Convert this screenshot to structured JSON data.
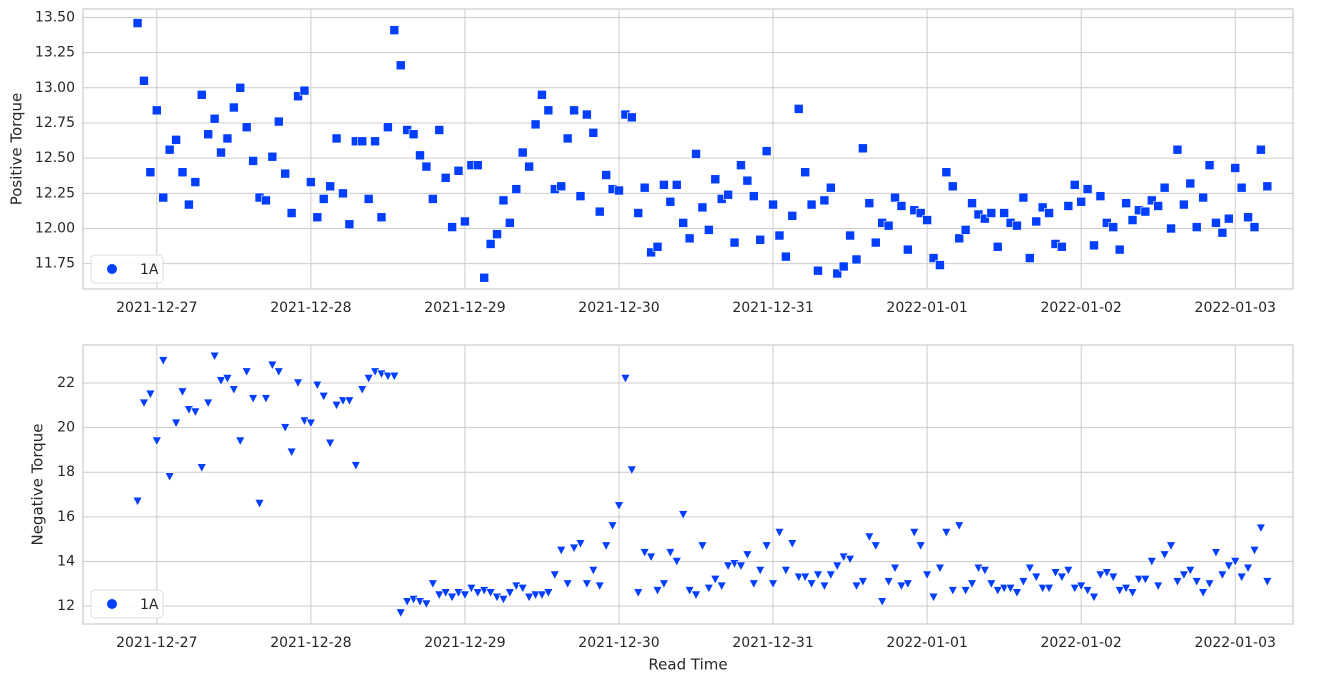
{
  "chart_data": [
    {
      "type": "scatter",
      "y_label": "Positive Torque",
      "marker": "square",
      "grid": true,
      "legend": "lower left",
      "xlim": [
        "2021-12-26 12:30",
        "2022-01-03 09:00"
      ],
      "xticks": [
        "2021-12-27",
        "2021-12-28",
        "2021-12-29",
        "2021-12-30",
        "2021-12-31",
        "2022-01-01",
        "2022-01-02",
        "2022-01-03"
      ],
      "ylim": [
        11.57,
        13.56
      ],
      "yticks": [
        11.75,
        {
          "value": 12,
          "label": "12.00"
        },
        12.25,
        {
          "value": 12.5,
          "label": "12.50"
        },
        12.75,
        {
          "value": 13,
          "label": "13.00"
        },
        13.25,
        {
          "value": 13.5,
          "label": "13.50"
        }
      ],
      "x": [
        "2021-12-26 21:00",
        "2021-12-26 22:00",
        "2021-12-26 23:00",
        "2021-12-27 00:00",
        "2021-12-27 01:00",
        "2021-12-27 02:00",
        "2021-12-27 03:00",
        "2021-12-27 04:00",
        "2021-12-27 05:00",
        "2021-12-27 06:00",
        "2021-12-27 07:00",
        "2021-12-27 08:00",
        "2021-12-27 09:00",
        "2021-12-27 10:00",
        "2021-12-27 11:00",
        "2021-12-27 12:00",
        "2021-12-27 13:00",
        "2021-12-27 14:00",
        "2021-12-27 15:00",
        "2021-12-27 16:00",
        "2021-12-27 17:00",
        "2021-12-27 18:00",
        "2021-12-27 19:00",
        "2021-12-27 20:00",
        "2021-12-27 21:00",
        "2021-12-27 22:00",
        "2021-12-27 23:00",
        "2021-12-28 00:00",
        "2021-12-28 01:00",
        "2021-12-28 02:00",
        "2021-12-28 03:00",
        "2021-12-28 04:00",
        "2021-12-28 05:00",
        "2021-12-28 06:00",
        "2021-12-28 07:00",
        "2021-12-28 08:00",
        "2021-12-28 09:00",
        "2021-12-28 10:00",
        "2021-12-28 11:00",
        "2021-12-28 12:00",
        "2021-12-28 13:00",
        "2021-12-28 14:00",
        "2021-12-28 15:00",
        "2021-12-28 16:00",
        "2021-12-28 17:00",
        "2021-12-28 18:00",
        "2021-12-28 19:00",
        "2021-12-28 20:00",
        "2021-12-28 21:00",
        "2021-12-28 22:00",
        "2021-12-28 23:00",
        "2021-12-29 00:00",
        "2021-12-29 01:00",
        "2021-12-29 02:00",
        "2021-12-29 03:00",
        "2021-12-29 04:00",
        "2021-12-29 05:00",
        "2021-12-29 06:00",
        "2021-12-29 07:00",
        "2021-12-29 08:00",
        "2021-12-29 09:00",
        "2021-12-29 10:00",
        "2021-12-29 11:00",
        "2021-12-29 12:00",
        "2021-12-29 13:00",
        "2021-12-29 14:00",
        "2021-12-29 15:00",
        "2021-12-29 16:00",
        "2021-12-29 17:00",
        "2021-12-29 18:00",
        "2021-12-29 19:00",
        "2021-12-29 20:00",
        "2021-12-29 21:00",
        "2021-12-29 22:00",
        "2021-12-29 23:00",
        "2021-12-30 00:00",
        "2021-12-30 01:00",
        "2021-12-30 02:00",
        "2021-12-30 03:00",
        "2021-12-30 04:00",
        "2021-12-30 05:00",
        "2021-12-30 06:00",
        "2021-12-30 07:00",
        "2021-12-30 08:00",
        "2021-12-30 09:00",
        "2021-12-30 10:00",
        "2021-12-30 11:00",
        "2021-12-30 12:00",
        "2021-12-30 13:00",
        "2021-12-30 14:00",
        "2021-12-30 15:00",
        "2021-12-30 16:00",
        "2021-12-30 17:00",
        "2021-12-30 18:00",
        "2021-12-30 19:00",
        "2021-12-30 20:00",
        "2021-12-30 21:00",
        "2021-12-30 22:00",
        "2021-12-30 23:00",
        "2021-12-31 00:00",
        "2021-12-31 01:00",
        "2021-12-31 02:00",
        "2021-12-31 03:00",
        "2021-12-31 04:00",
        "2021-12-31 05:00",
        "2021-12-31 06:00",
        "2021-12-31 07:00",
        "2021-12-31 08:00",
        "2021-12-31 09:00",
        "2021-12-31 10:00",
        "2021-12-31 11:00",
        "2021-12-31 12:00",
        "2021-12-31 13:00",
        "2021-12-31 14:00",
        "2021-12-31 15:00",
        "2021-12-31 16:00",
        "2021-12-31 17:00",
        "2021-12-31 18:00",
        "2021-12-31 19:00",
        "2021-12-31 20:00",
        "2021-12-31 21:00",
        "2021-12-31 22:00",
        "2021-12-31 23:00",
        "2022-01-01 00:00",
        "2022-01-01 01:00",
        "2022-01-01 02:00",
        "2022-01-01 03:00",
        "2022-01-01 04:00",
        "2022-01-01 05:00",
        "2022-01-01 06:00",
        "2022-01-01 07:00",
        "2022-01-01 08:00",
        "2022-01-01 09:00",
        "2022-01-01 10:00",
        "2022-01-01 11:00",
        "2022-01-01 12:00",
        "2022-01-01 13:00",
        "2022-01-01 14:00",
        "2022-01-01 15:00",
        "2022-01-01 16:00",
        "2022-01-01 17:00",
        "2022-01-01 18:00",
        "2022-01-01 19:00",
        "2022-01-01 20:00",
        "2022-01-01 21:00",
        "2022-01-01 22:00",
        "2022-01-01 23:00",
        "2022-01-02 00:00",
        "2022-01-02 01:00",
        "2022-01-02 02:00",
        "2022-01-02 03:00",
        "2022-01-02 04:00",
        "2022-01-02 05:00",
        "2022-01-02 06:00",
        "2022-01-02 07:00",
        "2022-01-02 08:00",
        "2022-01-02 09:00",
        "2022-01-02 10:00",
        "2022-01-02 11:00",
        "2022-01-02 12:00",
        "2022-01-02 13:00",
        "2022-01-02 14:00",
        "2022-01-02 15:00",
        "2022-01-02 16:00",
        "2022-01-02 17:00",
        "2022-01-02 18:00",
        "2022-01-02 19:00",
        "2022-01-02 20:00",
        "2022-01-02 21:00",
        "2022-01-02 22:00",
        "2022-01-02 23:00",
        "2022-01-03 00:00",
        "2022-01-03 01:00",
        "2022-01-03 02:00",
        "2022-01-03 03:00",
        "2022-01-03 04:00",
        "2022-01-03 05:00"
      ],
      "series": [
        {
          "name": "1A",
          "color": "#023eff",
          "values": [
            13.46,
            13.05,
            12.4,
            12.84,
            12.22,
            12.56,
            12.63,
            12.4,
            12.17,
            12.33,
            12.95,
            12.67,
            12.78,
            12.54,
            12.64,
            12.86,
            13.0,
            12.72,
            12.48,
            12.22,
            12.2,
            12.51,
            12.76,
            12.39,
            12.11,
            12.94,
            12.98,
            12.33,
            12.08,
            12.21,
            12.3,
            12.64,
            12.25,
            12.03,
            12.62,
            12.62,
            12.21,
            12.62,
            12.08,
            12.72,
            13.41,
            13.16,
            12.7,
            12.67,
            12.52,
            12.44,
            12.21,
            12.7,
            12.36,
            12.01,
            12.41,
            12.05,
            12.45,
            12.45,
            11.65,
            11.89,
            11.96,
            12.2,
            12.04,
            12.28,
            12.54,
            12.44,
            12.74,
            12.95,
            12.84,
            12.28,
            12.3,
            12.64,
            12.84,
            12.23,
            12.81,
            12.68,
            12.12,
            12.38,
            12.28,
            12.27,
            12.81,
            12.79,
            12.11,
            12.29,
            11.83,
            11.87,
            12.31,
            12.19,
            12.31,
            12.04,
            11.93,
            12.53,
            12.15,
            11.99,
            12.35,
            12.21,
            12.24,
            11.9,
            12.45,
            12.34,
            12.23,
            11.92,
            12.55,
            12.17,
            11.95,
            11.8,
            12.09,
            12.85,
            12.4,
            12.17,
            11.7,
            12.2,
            12.29,
            11.68,
            11.73,
            11.95,
            11.78,
            12.57,
            12.18,
            11.9,
            12.04,
            12.02,
            12.22,
            12.16,
            11.85,
            12.13,
            12.11,
            12.06,
            11.79,
            11.74,
            12.4,
            12.3,
            11.93,
            11.99,
            12.18,
            12.1,
            12.07,
            12.11,
            11.87,
            12.11,
            12.04,
            12.02,
            12.22,
            11.79,
            12.05,
            12.15,
            12.11,
            11.89,
            11.87,
            12.16,
            12.31,
            12.19,
            12.28,
            11.88,
            12.23,
            12.04,
            12.01,
            11.85,
            12.18,
            12.06,
            12.13,
            12.12,
            12.2,
            12.16,
            12.29,
            12.0,
            12.56,
            12.17,
            12.32,
            12.01,
            12.22,
            12.45,
            12.04,
            11.97,
            12.07,
            12.43,
            12.29,
            12.08,
            12.01,
            12.56,
            12.3
          ]
        }
      ]
    },
    {
      "type": "scatter",
      "x_label": "Read Time",
      "y_label": "Negative Torque",
      "marker": "triangle-down",
      "grid": true,
      "legend": "lower left",
      "xlim": [
        "2021-12-26 12:30",
        "2022-01-03 09:00"
      ],
      "xticks": [
        "2021-12-27",
        "2021-12-28",
        "2021-12-29",
        "2021-12-30",
        "2021-12-31",
        "2022-01-01",
        "2022-01-02",
        "2022-01-03"
      ],
      "ylim": [
        11.2,
        23.7
      ],
      "yticks": [
        12,
        14,
        16,
        18,
        20,
        22
      ],
      "x": [
        "2021-12-26 21:00",
        "2021-12-26 22:00",
        "2021-12-26 23:00",
        "2021-12-27 00:00",
        "2021-12-27 01:00",
        "2021-12-27 02:00",
        "2021-12-27 03:00",
        "2021-12-27 04:00",
        "2021-12-27 05:00",
        "2021-12-27 06:00",
        "2021-12-27 07:00",
        "2021-12-27 08:00",
        "2021-12-27 09:00",
        "2021-12-27 10:00",
        "2021-12-27 11:00",
        "2021-12-27 12:00",
        "2021-12-27 13:00",
        "2021-12-27 14:00",
        "2021-12-27 15:00",
        "2021-12-27 16:00",
        "2021-12-27 17:00",
        "2021-12-27 18:00",
        "2021-12-27 19:00",
        "2021-12-27 20:00",
        "2021-12-27 21:00",
        "2021-12-27 22:00",
        "2021-12-27 23:00",
        "2021-12-28 00:00",
        "2021-12-28 01:00",
        "2021-12-28 02:00",
        "2021-12-28 03:00",
        "2021-12-28 04:00",
        "2021-12-28 05:00",
        "2021-12-28 06:00",
        "2021-12-28 07:00",
        "2021-12-28 08:00",
        "2021-12-28 09:00",
        "2021-12-28 10:00",
        "2021-12-28 11:00",
        "2021-12-28 12:00",
        "2021-12-28 13:00",
        "2021-12-28 14:00",
        "2021-12-28 15:00",
        "2021-12-28 16:00",
        "2021-12-28 17:00",
        "2021-12-28 18:00",
        "2021-12-28 19:00",
        "2021-12-28 20:00",
        "2021-12-28 21:00",
        "2021-12-28 22:00",
        "2021-12-28 23:00",
        "2021-12-29 00:00",
        "2021-12-29 01:00",
        "2021-12-29 02:00",
        "2021-12-29 03:00",
        "2021-12-29 04:00",
        "2021-12-29 05:00",
        "2021-12-29 06:00",
        "2021-12-29 07:00",
        "2021-12-29 08:00",
        "2021-12-29 09:00",
        "2021-12-29 10:00",
        "2021-12-29 11:00",
        "2021-12-29 12:00",
        "2021-12-29 13:00",
        "2021-12-29 14:00",
        "2021-12-29 15:00",
        "2021-12-29 16:00",
        "2021-12-29 17:00",
        "2021-12-29 18:00",
        "2021-12-29 19:00",
        "2021-12-29 20:00",
        "2021-12-29 21:00",
        "2021-12-29 22:00",
        "2021-12-29 23:00",
        "2021-12-30 00:00",
        "2021-12-30 01:00",
        "2021-12-30 02:00",
        "2021-12-30 03:00",
        "2021-12-30 04:00",
        "2021-12-30 05:00",
        "2021-12-30 06:00",
        "2021-12-30 07:00",
        "2021-12-30 08:00",
        "2021-12-30 09:00",
        "2021-12-30 10:00",
        "2021-12-30 11:00",
        "2021-12-30 12:00",
        "2021-12-30 13:00",
        "2021-12-30 14:00",
        "2021-12-30 15:00",
        "2021-12-30 16:00",
        "2021-12-30 17:00",
        "2021-12-30 18:00",
        "2021-12-30 19:00",
        "2021-12-30 20:00",
        "2021-12-30 21:00",
        "2021-12-30 22:00",
        "2021-12-30 23:00",
        "2021-12-31 00:00",
        "2021-12-31 01:00",
        "2021-12-31 02:00",
        "2021-12-31 03:00",
        "2021-12-31 04:00",
        "2021-12-31 05:00",
        "2021-12-31 06:00",
        "2021-12-31 07:00",
        "2021-12-31 08:00",
        "2021-12-31 09:00",
        "2021-12-31 10:00",
        "2021-12-31 11:00",
        "2021-12-31 12:00",
        "2021-12-31 13:00",
        "2021-12-31 14:00",
        "2021-12-31 15:00",
        "2021-12-31 16:00",
        "2021-12-31 17:00",
        "2021-12-31 18:00",
        "2021-12-31 19:00",
        "2021-12-31 20:00",
        "2021-12-31 21:00",
        "2021-12-31 22:00",
        "2021-12-31 23:00",
        "2022-01-01 00:00",
        "2022-01-01 01:00",
        "2022-01-01 02:00",
        "2022-01-01 03:00",
        "2022-01-01 04:00",
        "2022-01-01 05:00",
        "2022-01-01 06:00",
        "2022-01-01 07:00",
        "2022-01-01 08:00",
        "2022-01-01 09:00",
        "2022-01-01 10:00",
        "2022-01-01 11:00",
        "2022-01-01 12:00",
        "2022-01-01 13:00",
        "2022-01-01 14:00",
        "2022-01-01 15:00",
        "2022-01-01 16:00",
        "2022-01-01 17:00",
        "2022-01-01 18:00",
        "2022-01-01 19:00",
        "2022-01-01 20:00",
        "2022-01-01 21:00",
        "2022-01-01 22:00",
        "2022-01-01 23:00",
        "2022-01-02 00:00",
        "2022-01-02 01:00",
        "2022-01-02 02:00",
        "2022-01-02 03:00",
        "2022-01-02 04:00",
        "2022-01-02 05:00",
        "2022-01-02 06:00",
        "2022-01-02 07:00",
        "2022-01-02 08:00",
        "2022-01-02 09:00",
        "2022-01-02 10:00",
        "2022-01-02 11:00",
        "2022-01-02 12:00",
        "2022-01-02 13:00",
        "2022-01-02 14:00",
        "2022-01-02 15:00",
        "2022-01-02 16:00",
        "2022-01-02 17:00",
        "2022-01-02 18:00",
        "2022-01-02 19:00",
        "2022-01-02 20:00",
        "2022-01-02 21:00",
        "2022-01-02 22:00",
        "2022-01-02 23:00",
        "2022-01-03 00:00",
        "2022-01-03 01:00",
        "2022-01-03 02:00",
        "2022-01-03 03:00",
        "2022-01-03 04:00",
        "2022-01-03 05:00"
      ],
      "series": [
        {
          "name": "1A",
          "color": "#023eff",
          "values": [
            16.7,
            21.1,
            21.5,
            19.4,
            23.0,
            17.8,
            20.2,
            21.6,
            20.8,
            20.7,
            18.2,
            21.1,
            23.2,
            22.1,
            22.2,
            21.7,
            19.4,
            22.5,
            21.3,
            16.6,
            21.3,
            22.8,
            22.5,
            20.0,
            18.9,
            22.0,
            20.3,
            20.2,
            21.9,
            21.4,
            19.3,
            21.0,
            21.2,
            21.2,
            18.3,
            21.7,
            22.2,
            22.5,
            22.4,
            22.3,
            22.3,
            11.7,
            12.2,
            12.3,
            12.2,
            12.1,
            13.0,
            12.5,
            12.6,
            12.4,
            12.6,
            12.5,
            12.8,
            12.6,
            12.7,
            12.6,
            12.4,
            12.3,
            12.6,
            12.9,
            12.8,
            12.4,
            12.5,
            12.5,
            12.6,
            13.4,
            14.5,
            13.0,
            14.6,
            14.8,
            13.0,
            13.6,
            12.9,
            14.7,
            15.6,
            16.5,
            22.2,
            18.1,
            12.6,
            14.4,
            14.2,
            12.7,
            13.0,
            14.4,
            14.0,
            16.1,
            12.7,
            12.5,
            14.7,
            12.8,
            13.2,
            12.9,
            13.8,
            13.9,
            13.8,
            14.3,
            13.0,
            13.6,
            14.7,
            13.0,
            15.3,
            13.6,
            14.8,
            13.3,
            13.3,
            13.0,
            13.4,
            12.9,
            13.4,
            13.8,
            14.2,
            14.1,
            12.9,
            13.1,
            15.1,
            14.7,
            12.2,
            13.1,
            13.7,
            12.9,
            13.0,
            15.3,
            14.7,
            13.4,
            12.4,
            13.7,
            15.3,
            12.7,
            15.6,
            12.7,
            13.0,
            13.7,
            13.6,
            13.0,
            12.7,
            12.8,
            12.8,
            12.6,
            13.1,
            13.7,
            13.3,
            12.8,
            12.8,
            13.5,
            13.3,
            13.6,
            12.8,
            12.9,
            12.7,
            12.4,
            13.4,
            13.5,
            13.3,
            12.7,
            12.8,
            12.6,
            13.2,
            13.2,
            14.0,
            12.9,
            14.3,
            14.7,
            13.1,
            13.4,
            13.6,
            13.1,
            12.6,
            13.0,
            14.4,
            13.4,
            13.8,
            14.0,
            13.3,
            13.7,
            14.5,
            15.5,
            13.1
          ]
        }
      ]
    }
  ]
}
